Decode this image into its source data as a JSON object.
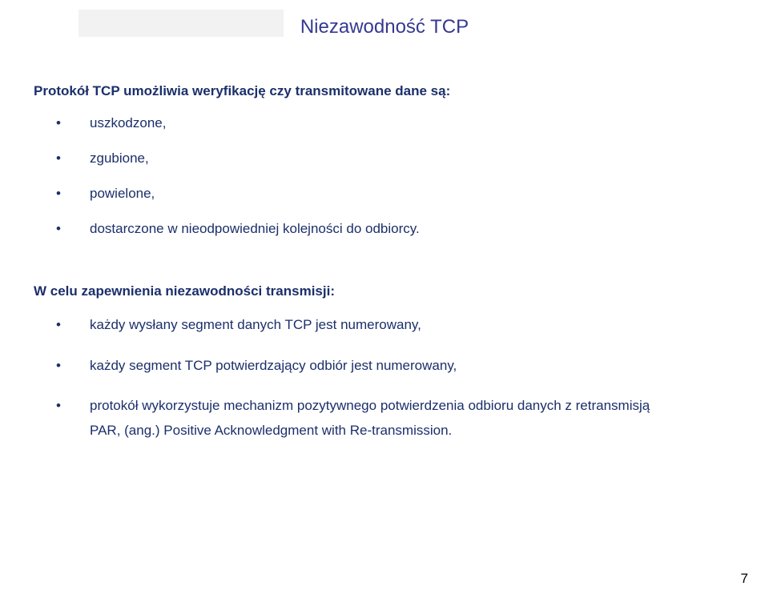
{
  "colors": {
    "title_color": "#353992",
    "body_color": "#1b2f6b",
    "page_num_color": "#000000",
    "title_bar_bg": "#f2f2f2",
    "background": "#ffffff"
  },
  "title": "Niezawodność TCP",
  "section1": {
    "intro": "Protokół TCP umożliwia weryfikację czy transmitowane dane są:",
    "items": [
      "uszkodzone,",
      "zgubione,",
      "powielone,",
      "dostarczone w nieodpowiedniej kolejności do odbiorcy."
    ]
  },
  "section2": {
    "intro": "W celu zapewnienia niezawodności transmisji:",
    "items": [
      "każdy wysłany segment danych TCP jest numerowany,",
      "każdy segment TCP potwierdzający odbiór jest numerowany,",
      "protokół wykorzystuje mechanizm pozytywnego potwierdzenia odbioru danych  z retransmisją"
    ],
    "sub_line": " PAR, (ang.) Positive Acknowledgment with Re-transmission."
  },
  "page_number": "7"
}
